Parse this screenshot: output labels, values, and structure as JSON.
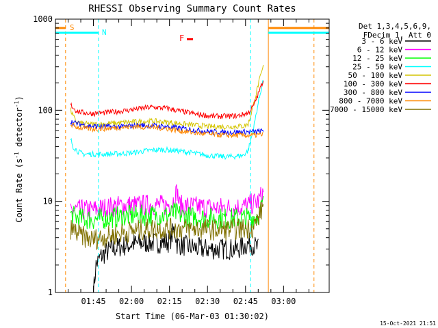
{
  "chart_data": {
    "type": "line",
    "title": "RHESSI Observing Summary Count Rates",
    "xlabel": "Start Time (06-Mar-03 01:30:02)",
    "ylabel_main": "Count Rate (s",
    "ylabel_sup1": "-1",
    "ylabel_mid": " detector",
    "ylabel_sup2": "-1",
    "ylabel_end": ")",
    "y_scale": "log",
    "ylim": [
      1,
      1000
    ],
    "xlim_minutes": [
      0,
      108
    ],
    "x_ticks": [
      {
        "t": 15,
        "label": "01:45"
      },
      {
        "t": 30,
        "label": "02:00"
      },
      {
        "t": 45,
        "label": "02:15"
      },
      {
        "t": 60,
        "label": "02:30"
      },
      {
        "t": 75,
        "label": "02:45"
      },
      {
        "t": 90,
        "label": "03:00"
      }
    ],
    "y_ticks": [
      {
        "v": 1,
        "label": "1"
      },
      {
        "v": 10,
        "label": "10"
      },
      {
        "v": 100,
        "label": "100"
      },
      {
        "v": 1000,
        "label": "1000"
      }
    ],
    "legend_header": [
      "Det 1,3,4,5,6,9,",
      "FDecim 1, Att 0"
    ],
    "series": [
      {
        "name": "3 - 6 keV",
        "color": "#000000",
        "points": [
          [
            15,
            1
          ],
          [
            16,
            2
          ],
          [
            18,
            2.5
          ],
          [
            22,
            3
          ],
          [
            26,
            3.2
          ],
          [
            30,
            3.4
          ],
          [
            35,
            3.5
          ],
          [
            40,
            3.5
          ],
          [
            45,
            3.6
          ],
          [
            47,
            5
          ],
          [
            48,
            3.4
          ],
          [
            52,
            3.2
          ],
          [
            58,
            3
          ],
          [
            65,
            3
          ],
          [
            72,
            3
          ],
          [
            77,
            3.5
          ],
          [
            80,
            3
          ]
        ]
      },
      {
        "name": "6 - 12 keV",
        "color": "#ff00ff",
        "points": [
          [
            6,
            8
          ],
          [
            14,
            8
          ],
          [
            20,
            8.5
          ],
          [
            26,
            9
          ],
          [
            32,
            9
          ],
          [
            38,
            9.2
          ],
          [
            43,
            9
          ],
          [
            46,
            9.5
          ],
          [
            48,
            13
          ],
          [
            49,
            9
          ],
          [
            54,
            8.8
          ],
          [
            62,
            8.5
          ],
          [
            70,
            8.5
          ],
          [
            76,
            9
          ],
          [
            80,
            10
          ],
          [
            82,
            12.5
          ]
        ]
      },
      {
        "name": "12 - 25 keV",
        "color": "#00ff00",
        "points": [
          [
            6,
            7
          ],
          [
            10,
            6.5
          ],
          [
            14,
            6.3
          ],
          [
            20,
            6.5
          ],
          [
            26,
            6.8
          ],
          [
            32,
            7
          ],
          [
            38,
            7
          ],
          [
            44,
            7
          ],
          [
            47,
            7.5
          ],
          [
            50,
            6.9
          ],
          [
            58,
            6.6
          ],
          [
            66,
            6.5
          ],
          [
            72,
            6.5
          ],
          [
            77,
            6.6
          ],
          [
            80,
            7
          ],
          [
            82,
            9.5
          ]
        ]
      },
      {
        "name": "25 - 50 keV",
        "color": "#00ffff",
        "points": [
          [
            6,
            48
          ],
          [
            7,
            40
          ],
          [
            9,
            35
          ],
          [
            11,
            33
          ],
          [
            15,
            33
          ],
          [
            22,
            33
          ],
          [
            30,
            34
          ],
          [
            36,
            36
          ],
          [
            42,
            37
          ],
          [
            48,
            36
          ],
          [
            54,
            34
          ],
          [
            60,
            32
          ],
          [
            66,
            31
          ],
          [
            70,
            31
          ],
          [
            74,
            32
          ],
          [
            76,
            36
          ],
          [
            78,
            60
          ],
          [
            80,
            120
          ],
          [
            82,
            220
          ]
        ]
      },
      {
        "name": "50 - 100 keV",
        "color": "#d4c400",
        "points": [
          [
            6,
            100
          ],
          [
            8,
            75
          ],
          [
            10,
            72
          ],
          [
            14,
            70
          ],
          [
            20,
            71
          ],
          [
            26,
            73
          ],
          [
            32,
            75
          ],
          [
            38,
            76
          ],
          [
            44,
            74
          ],
          [
            50,
            71
          ],
          [
            56,
            68
          ],
          [
            62,
            66
          ],
          [
            68,
            66
          ],
          [
            74,
            67
          ],
          [
            76,
            70
          ],
          [
            78,
            110
          ],
          [
            80,
            190
          ],
          [
            82,
            300
          ]
        ]
      },
      {
        "name": "100 - 300 keV",
        "color": "#ff0000",
        "points": [
          [
            6,
            115
          ],
          [
            8,
            100
          ],
          [
            10,
            95
          ],
          [
            14,
            92
          ],
          [
            20,
            94
          ],
          [
            26,
            98
          ],
          [
            32,
            103
          ],
          [
            38,
            108
          ],
          [
            44,
            105
          ],
          [
            50,
            97
          ],
          [
            56,
            90
          ],
          [
            62,
            86
          ],
          [
            68,
            86
          ],
          [
            72,
            87
          ],
          [
            76,
            93
          ],
          [
            78,
            110
          ],
          [
            80,
            150
          ],
          [
            82,
            215
          ]
        ]
      },
      {
        "name": "300 - 800 keV",
        "color": "#0000ff",
        "points": [
          [
            6,
            75
          ],
          [
            8,
            72
          ],
          [
            10,
            70
          ],
          [
            14,
            67
          ],
          [
            20,
            66
          ],
          [
            26,
            66
          ],
          [
            32,
            68
          ],
          [
            38,
            68
          ],
          [
            44,
            66
          ],
          [
            50,
            63
          ],
          [
            56,
            60
          ],
          [
            62,
            58
          ],
          [
            68,
            57
          ],
          [
            74,
            58
          ],
          [
            78,
            58
          ],
          [
            82,
            59
          ]
        ]
      },
      {
        "name": "800 - 7000 keV",
        "color": "#ff8800",
        "points": [
          [
            6,
            70
          ],
          [
            8,
            66
          ],
          [
            10,
            64
          ],
          [
            14,
            62
          ],
          [
            20,
            63
          ],
          [
            26,
            65
          ],
          [
            32,
            66
          ],
          [
            38,
            65
          ],
          [
            44,
            63
          ],
          [
            50,
            59
          ],
          [
            56,
            56
          ],
          [
            62,
            54
          ],
          [
            68,
            53
          ],
          [
            74,
            53
          ],
          [
            78,
            53
          ],
          [
            82,
            54
          ]
        ]
      },
      {
        "name": "7000 - 15000 keV",
        "color": "#807000",
        "points": [
          [
            6,
            5
          ],
          [
            10,
            4.2
          ],
          [
            14,
            3.8
          ],
          [
            20,
            4.1
          ],
          [
            26,
            4.5
          ],
          [
            32,
            4.8
          ],
          [
            38,
            5
          ],
          [
            44,
            5
          ],
          [
            50,
            5
          ],
          [
            56,
            5
          ],
          [
            62,
            4.9
          ],
          [
            68,
            4.9
          ],
          [
            74,
            5
          ],
          [
            78,
            5.2
          ],
          [
            80,
            6.5
          ],
          [
            82,
            9
          ]
        ]
      }
    ],
    "annotations": {
      "saa_label": "S",
      "night_label": "N",
      "flare_label": "F",
      "saa_color": "#ff8800",
      "night_color": "#00ffff",
      "flare_color": "#ff0000",
      "saa_lines_min": [
        4,
        102
      ],
      "night_lines_min": [
        17,
        77
      ],
      "attenuator_lines_min": [
        84
      ]
    },
    "timestamp": "15-Oct-2021 21:51"
  }
}
